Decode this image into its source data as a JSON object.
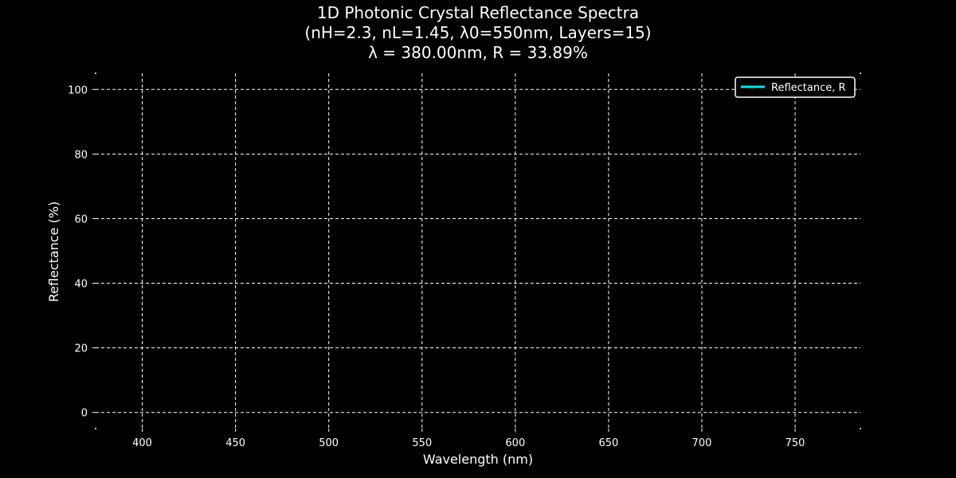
{
  "chart_data": {
    "type": "line",
    "title_lines": [
      "1D Photonic Crystal Reflectance Spectra",
      "(nH=2.3, nL=1.45, λ0=550nm, Layers=15)",
      "λ = 380.00nm, R = 33.89%"
    ],
    "xlabel": "Wavelength (nm)",
    "ylabel": "Reflectance (%)",
    "xlim": [
      375,
      785
    ],
    "ylim": [
      -5,
      105
    ],
    "x_ticks": [
      400,
      450,
      500,
      550,
      600,
      650,
      700,
      750
    ],
    "y_ticks": [
      0,
      20,
      40,
      60,
      80,
      100
    ],
    "grid": true,
    "grid_style": "dashed",
    "legend_position": "top-right",
    "series": [
      {
        "name": "Reflectance, R",
        "color": "#00e5ee",
        "x": [],
        "y": []
      }
    ],
    "colors": {
      "background": "#000000",
      "text": "#ffffff",
      "grid": "#ffffff",
      "legend_border": "#ffffff"
    }
  }
}
